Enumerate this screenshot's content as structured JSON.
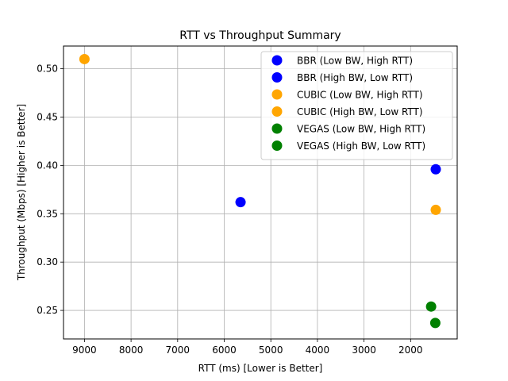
{
  "chart_data": {
    "type": "scatter",
    "title": "RTT vs Throughput Summary",
    "xlabel": "RTT (ms) [Lower is Better]",
    "ylabel": "Throughput (Mbps) [Higher is  Better]",
    "x_inverted": true,
    "xlim": [
      9450,
      1000
    ],
    "ylim": [
      0.2205,
      0.5235
    ],
    "x_ticks": [
      9000,
      8000,
      7000,
      6000,
      5000,
      4000,
      3000,
      2000
    ],
    "y_ticks": [
      0.25,
      0.3,
      0.35,
      0.4,
      0.45,
      0.5
    ],
    "grid": true,
    "legend_position": "top-right",
    "series": [
      {
        "name": "BBR (Low BW, High RTT)",
        "color": "#0000ff",
        "points": [
          {
            "x": 5650,
            "y": 0.362
          }
        ]
      },
      {
        "name": "BBR (High BW, Low RTT)",
        "color": "#0000ff",
        "points": [
          {
            "x": 1460,
            "y": 0.396
          }
        ]
      },
      {
        "name": "CUBIC (Low BW, High RTT)",
        "color": "#ffa500",
        "points": [
          {
            "x": 9000,
            "y": 0.51
          }
        ]
      },
      {
        "name": "CUBIC (High BW, Low RTT)",
        "color": "#ffa500",
        "points": [
          {
            "x": 1460,
            "y": 0.354
          }
        ]
      },
      {
        "name": "VEGAS (Low BW, High RTT)",
        "color": "#008000",
        "points": [
          {
            "x": 1560,
            "y": 0.254
          }
        ]
      },
      {
        "name": "VEGAS (High BW, Low RTT)",
        "color": "#008000",
        "points": [
          {
            "x": 1470,
            "y": 0.237
          }
        ]
      }
    ]
  }
}
